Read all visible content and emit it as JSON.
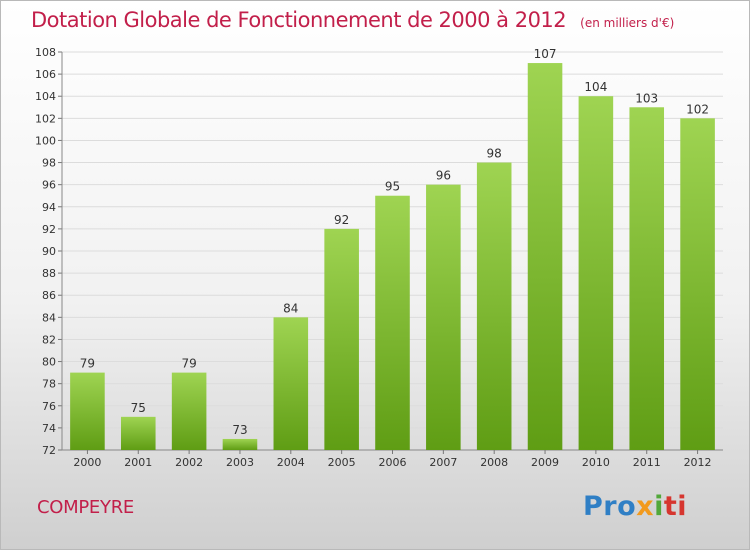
{
  "header": {
    "title": "Dotation Globale de Fonctionnement de 2000 à 2012",
    "unit": "(en milliers d'€)"
  },
  "footer": {
    "commune": "COMPEYRE",
    "logo_parts": [
      "Pro",
      "x",
      "i",
      "ti"
    ]
  },
  "colors": {
    "title": "#c21f4a",
    "bar_light": "#9fd452",
    "bar_dark": "#5f9d14"
  },
  "chart_data": {
    "type": "bar",
    "title": "Dotation Globale de Fonctionnement de 2000 à 2012",
    "unit": "(en milliers d'€)",
    "xlabel": "",
    "ylabel": "",
    "categories": [
      "2000",
      "2001",
      "2002",
      "2003",
      "2004",
      "2005",
      "2006",
      "2007",
      "2008",
      "2009",
      "2010",
      "2011",
      "2012"
    ],
    "values": [
      79,
      75,
      79,
      73,
      84,
      92,
      95,
      96,
      98,
      107,
      104,
      103,
      102
    ],
    "ylim": [
      72,
      108
    ],
    "yticks": [
      72,
      74,
      76,
      78,
      80,
      82,
      84,
      86,
      88,
      90,
      92,
      94,
      96,
      98,
      100,
      102,
      104,
      106,
      108
    ],
    "grid": true,
    "legend": "none"
  }
}
